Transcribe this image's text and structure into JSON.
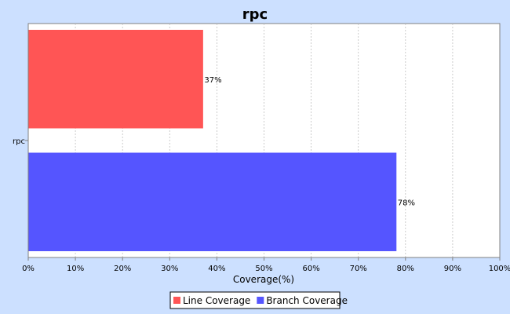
{
  "chart_data": {
    "type": "bar",
    "orientation": "horizontal",
    "title": "rpc",
    "categories": [
      "rpc"
    ],
    "series": [
      {
        "name": "Line Coverage",
        "values": [
          37
        ],
        "color": "#ff5555",
        "label": "37%"
      },
      {
        "name": "Branch Coverage",
        "values": [
          78
        ],
        "color": "#5555ff",
        "label": "78%"
      }
    ],
    "xlabel": "Coverage(%)",
    "ylabel": "",
    "xlim": [
      0,
      100
    ],
    "x_ticks": [
      "0%",
      "10%",
      "20%",
      "30%",
      "40%",
      "50%",
      "60%",
      "70%",
      "80%",
      "90%",
      "100%"
    ],
    "grid": true,
    "legend_position": "bottom-center",
    "colors": {
      "background": "#cce0ff",
      "plot_background": "#ffffff",
      "gridline": "#c0c0c0"
    }
  }
}
